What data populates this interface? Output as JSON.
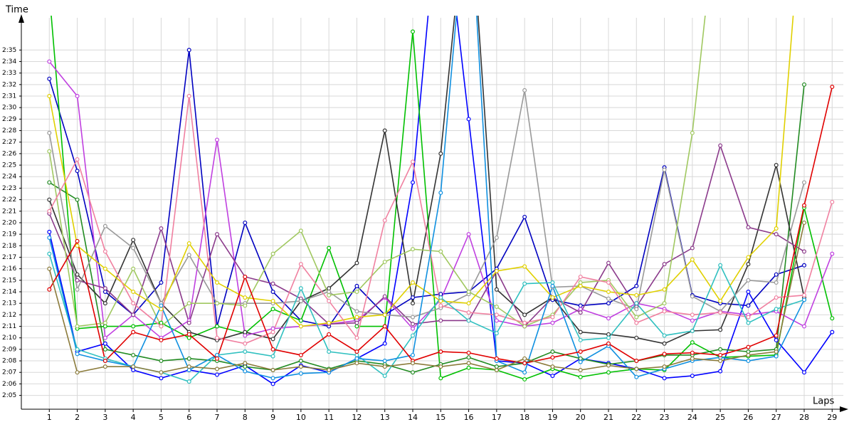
{
  "chart_data": {
    "type": "line",
    "ylabel": "Time",
    "xlabel": "Laps",
    "xlim": [
      0,
      29.4
    ],
    "ylim": [
      123.8,
      157.8
    ],
    "xticks": [
      1,
      2,
      3,
      4,
      5,
      6,
      7,
      8,
      9,
      10,
      11,
      12,
      13,
      14,
      15,
      16,
      17,
      18,
      19,
      20,
      21,
      22,
      23,
      24,
      25,
      26,
      27,
      28,
      29
    ],
    "yticks": [
      {
        "value": 125,
        "label": "2:05"
      },
      {
        "value": 126,
        "label": "2:06"
      },
      {
        "value": 127,
        "label": "2:07"
      },
      {
        "value": 128,
        "label": "2:08"
      },
      {
        "value": 129,
        "label": "2:09"
      },
      {
        "value": 130,
        "label": "2:10"
      },
      {
        "value": 131,
        "label": "2:11"
      },
      {
        "value": 132,
        "label": "2:12"
      },
      {
        "value": 133,
        "label": "2:13"
      },
      {
        "value": 134,
        "label": "2:14"
      },
      {
        "value": 135,
        "label": "2:15"
      },
      {
        "value": 136,
        "label": "2:16"
      },
      {
        "value": 137,
        "label": "2:17"
      },
      {
        "value": 138,
        "label": "2:18"
      },
      {
        "value": 139,
        "label": "2:19"
      },
      {
        "value": 140,
        "label": "2:20"
      },
      {
        "value": 141,
        "label": "2:21"
      },
      {
        "value": 142,
        "label": "2:22"
      },
      {
        "value": 143,
        "label": "2:23"
      },
      {
        "value": 144,
        "label": "2:24"
      },
      {
        "value": 145,
        "label": "2:25"
      },
      {
        "value": 146,
        "label": "2:26"
      },
      {
        "value": 147,
        "label": "2:27"
      },
      {
        "value": 148,
        "label": "2:28"
      },
      {
        "value": 149,
        "label": "2:29"
      },
      {
        "value": 150,
        "label": "2:30"
      },
      {
        "value": 151,
        "label": "2:31"
      },
      {
        "value": 152,
        "label": "2:32"
      },
      {
        "value": 153,
        "label": "2:33"
      },
      {
        "value": 154,
        "label": "2:34"
      },
      {
        "value": 155,
        "label": "2:35"
      }
    ],
    "grid": true,
    "x": [
      1,
      2,
      3,
      4,
      5,
      6,
      7,
      8,
      9,
      10,
      11,
      12,
      13,
      14,
      15,
      16,
      17,
      18,
      19,
      20,
      21,
      22,
      23,
      24,
      25,
      26,
      27,
      28,
      29
    ],
    "series": [
      {
        "color": "#0000c0",
        "values": [
          152.5,
          144.5,
          134,
          132,
          134.8,
          155,
          131,
          140,
          134,
          131.5,
          131,
          134.5,
          132,
          133.5,
          133.8,
          134,
          136,
          140.5,
          133.3,
          132.8,
          133,
          134.5,
          144.8,
          133.7,
          133,
          132.8,
          135.5,
          136.3,
          null
        ]
      },
      {
        "color": "#0000ff",
        "values": [
          139.2,
          128.8,
          129.5,
          127.2,
          126.5,
          127.2,
          126.8,
          127.6,
          126,
          127.6,
          127,
          128.2,
          129.5,
          143.5,
          170,
          149,
          128,
          127.8,
          126.7,
          128.2,
          127.8,
          127.3,
          126.5,
          126.7,
          127.1,
          134,
          129.8,
          127,
          130.5
        ]
      },
      {
        "color": "#00c000",
        "values": [
          160,
          130.8,
          131,
          131,
          131.3,
          130,
          131,
          130.4,
          132.5,
          131.5,
          137.8,
          131,
          131,
          156.6,
          126.5,
          127.4,
          127.2,
          126.4,
          127.3,
          126.6,
          127,
          127.3,
          127.2,
          129.6,
          128.3,
          128.4,
          128.5,
          141.3,
          131.7
        ]
      },
      {
        "color": "#228b22",
        "values": [
          143.5,
          142,
          129,
          128.5,
          128,
          128.2,
          128,
          127.5,
          127.2,
          128,
          127.3,
          128,
          127.7,
          127,
          127.7,
          128.3,
          127.5,
          127.8,
          128.8,
          128.2,
          127.7,
          128,
          128.5,
          128.5,
          129,
          128.8,
          129,
          152,
          null
        ]
      },
      {
        "color": "#333333",
        "values": [
          142,
          135.5,
          133,
          138.5,
          133,
          130.5,
          129.8,
          130.5,
          129.9,
          133.2,
          134.3,
          136.5,
          148,
          133,
          146,
          170,
          134.2,
          132,
          133.5,
          130.5,
          130.3,
          130,
          129.5,
          130.6,
          130.7,
          136.4,
          145,
          133.5,
          null
        ]
      },
      {
        "color": "#c040e0",
        "values": [
          154,
          151,
          130,
          132,
          130,
          131.5,
          147.2,
          130.2,
          130.8,
          131,
          131.2,
          131.5,
          133.5,
          130.8,
          133.3,
          139,
          131.5,
          131,
          131.3,
          132.5,
          131.7,
          133,
          132.5,
          131.5,
          132.3,
          132,
          132.3,
          131,
          137.3
        ]
      },
      {
        "color": "#8b3a8b",
        "values": [
          140.8,
          135,
          134.3,
          132,
          139.5,
          131.3,
          139,
          135.3,
          134.7,
          133.4,
          131.2,
          131.3,
          133.6,
          131.2,
          131.5,
          131.5,
          135.8,
          131,
          133.5,
          132.2,
          136.5,
          132.7,
          136.4,
          137.8,
          146.7,
          139.6,
          139,
          137.5,
          null
        ]
      },
      {
        "color": "#999999",
        "values": [
          147.8,
          134.2,
          139.7,
          137.8,
          133,
          137.2,
          133,
          133,
          133,
          133.2,
          134,
          132.3,
          132,
          131.8,
          132.6,
          133.8,
          138.7,
          151.5,
          134.4,
          134.5,
          133.4,
          132.5,
          144.6,
          133.6,
          132.3,
          135,
          134.8,
          143.5,
          null
        ]
      },
      {
        "color": "#a0c860",
        "values": [
          146.2,
          131,
          131.3,
          136,
          131,
          133,
          133,
          132.8,
          137.3,
          139.3,
          133.7,
          134,
          136.6,
          137.7,
          137.5,
          134,
          132.7,
          131,
          132,
          134.8,
          135,
          131.8,
          133,
          147.8,
          170,
          null,
          null,
          null,
          null
        ]
      },
      {
        "color": "#e0d000",
        "values": [
          151,
          138,
          136,
          134,
          132.5,
          138.2,
          134.8,
          133.5,
          133.2,
          131,
          131.3,
          131.8,
          132,
          134.8,
          133.2,
          133,
          135.8,
          136.2,
          133.5,
          134.5,
          134,
          133.7,
          134.2,
          136.8,
          133.2,
          137,
          139.5,
          170,
          null
        ]
      },
      {
        "color": "#f080a0",
        "values": [
          141,
          145.5,
          137.5,
          133,
          131,
          151,
          130,
          129.5,
          130.5,
          136.4,
          133.2,
          130,
          140.2,
          145.3,
          132.8,
          132.2,
          132,
          131.3,
          131.8,
          135.3,
          134.8,
          131.3,
          132.3,
          132,
          132.2,
          131.8,
          133.5,
          133.7,
          141.8
        ]
      },
      {
        "color": "#30c0c0",
        "values": [
          137.3,
          129,
          128.2,
          127.5,
          127,
          126.2,
          128.5,
          128.8,
          128.4,
          134.3,
          128.8,
          128.5,
          126.7,
          130.2,
          133.5,
          131.5,
          130.4,
          134.7,
          134.8,
          129.8,
          130,
          133,
          130.2,
          130.6,
          136.3,
          131.3,
          132.5,
          133.3,
          null
        ]
      },
      {
        "color": "#1090e0",
        "values": [
          138.7,
          128.6,
          128,
          127.5,
          132.8,
          127.2,
          128.5,
          127.1,
          126.5,
          126.9,
          127,
          128.2,
          128,
          128.5,
          142.6,
          170,
          128,
          127,
          134.5,
          127.9,
          129.3,
          126.6,
          127.3,
          128,
          128.3,
          128,
          128.4,
          133.3,
          null
        ]
      },
      {
        "color": "#e00000",
        "values": [
          134.2,
          138.4,
          128,
          130.5,
          129.8,
          130.3,
          128.2,
          135.3,
          129,
          128.5,
          130.3,
          128.8,
          131,
          128,
          128.8,
          128.7,
          128.2,
          127.8,
          128.3,
          128.8,
          129.5,
          128,
          128.6,
          128.7,
          128.5,
          129.2,
          130.2,
          141.5,
          151.8
        ]
      },
      {
        "color": "#8b7b3b",
        "values": [
          136,
          127,
          127.5,
          127.5,
          127,
          127.5,
          127.3,
          127.8,
          127.2,
          127.5,
          127.2,
          127.8,
          127.5,
          127.8,
          127.5,
          127.8,
          127.2,
          128.2,
          127.5,
          127.2,
          127.6,
          127.3,
          127.5,
          128.2,
          128,
          128.5,
          128.8,
          140,
          null
        ]
      }
    ]
  }
}
